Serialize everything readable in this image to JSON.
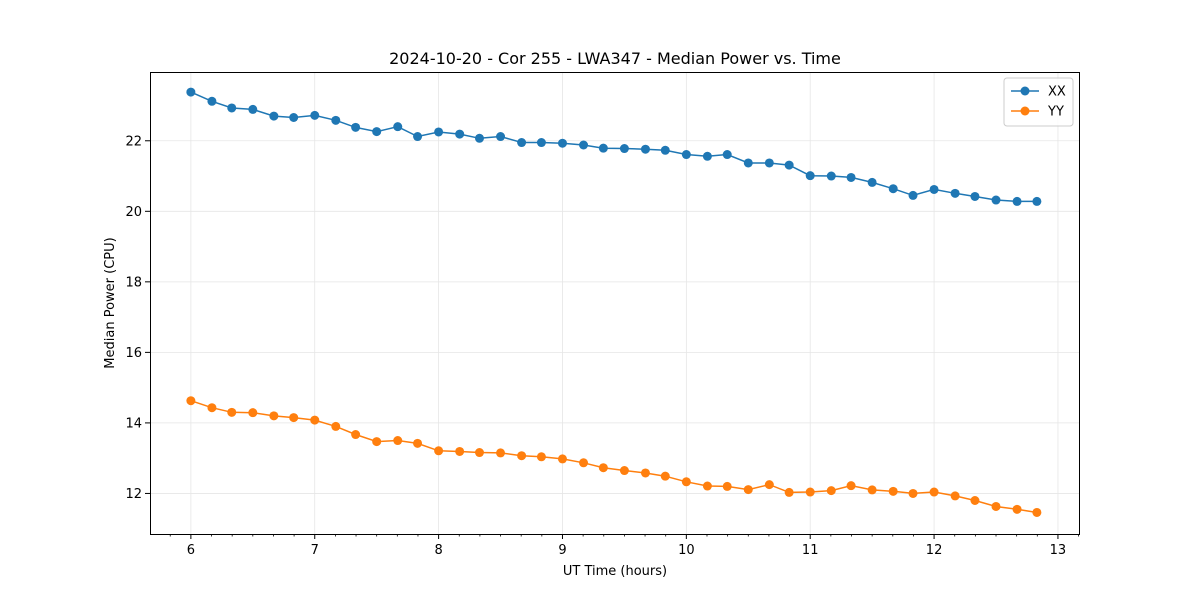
{
  "chart_data": {
    "type": "line",
    "title": "2024-10-20 - Cor 255 - LWA347 - Median Power vs. Time",
    "xlabel": "UT Time (hours)",
    "ylabel": "Median Power (CPU)",
    "xlim": [
      5.67,
      13.17
    ],
    "ylim": [
      10.85,
      23.95
    ],
    "xticks": [
      6,
      7,
      8,
      9,
      10,
      11,
      12,
      13
    ],
    "yticks": [
      12,
      14,
      16,
      18,
      20,
      22
    ],
    "grid": true,
    "legend_location": "top-right",
    "x": [
      6.0,
      6.17,
      6.33,
      6.5,
      6.67,
      6.83,
      7.0,
      7.17,
      7.33,
      7.5,
      7.67,
      7.83,
      8.0,
      8.17,
      8.33,
      8.5,
      8.67,
      8.83,
      9.0,
      9.17,
      9.33,
      9.5,
      9.67,
      9.83,
      10.0,
      10.17,
      10.33,
      10.5,
      10.67,
      10.83,
      11.0,
      11.17,
      11.33,
      11.5,
      11.67,
      11.83,
      12.0,
      12.17,
      12.33,
      12.5,
      12.67,
      12.83
    ],
    "series": [
      {
        "name": "XX",
        "color": "#1f77b4",
        "values": [
          23.38,
          23.12,
          22.93,
          22.89,
          22.7,
          22.66,
          22.72,
          22.58,
          22.38,
          22.26,
          22.4,
          22.12,
          22.25,
          22.19,
          22.07,
          22.12,
          21.95,
          21.95,
          21.93,
          21.88,
          21.79,
          21.78,
          21.76,
          21.73,
          21.61,
          21.56,
          21.61,
          21.37,
          21.37,
          21.31,
          21.01,
          21.0,
          20.96,
          20.82,
          20.64,
          20.45,
          20.62,
          20.51,
          20.42,
          20.32,
          20.28,
          20.28
        ]
      },
      {
        "name": "YY",
        "color": "#ff7f0e",
        "values": [
          14.63,
          14.43,
          14.3,
          14.29,
          14.2,
          14.15,
          14.08,
          13.9,
          13.67,
          13.47,
          13.5,
          13.42,
          13.21,
          13.19,
          13.16,
          13.15,
          13.07,
          13.04,
          12.98,
          12.87,
          12.73,
          12.65,
          12.58,
          12.49,
          12.33,
          12.21,
          12.2,
          12.11,
          12.25,
          12.03,
          12.04,
          12.08,
          12.22,
          12.1,
          12.06,
          12.0,
          12.04,
          11.93,
          11.8,
          11.63,
          11.55,
          11.46
        ]
      }
    ]
  }
}
